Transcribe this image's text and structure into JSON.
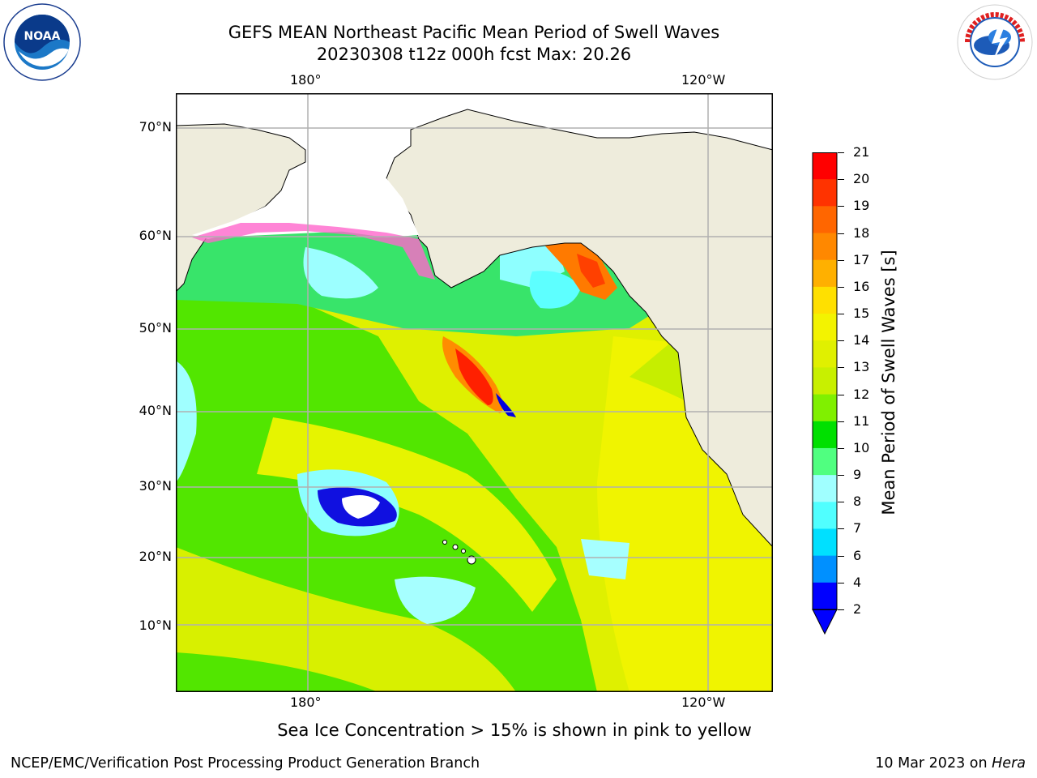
{
  "header": {
    "title_line1": "GEFS MEAN Northeast Pacific Mean Period of Swell Waves",
    "title_line2": "20230308 t12z 000h fcst   Max: 20.26"
  },
  "map": {
    "top_lon_labels": [
      "180°",
      "120°W"
    ],
    "bottom_lon_labels": [
      "180°",
      "120°W"
    ],
    "lat_labels": [
      "70°N",
      "60°N",
      "50°N",
      "40°N",
      "30°N",
      "20°N",
      "10°N"
    ],
    "colors": {
      "land": "#eeecdc",
      "grid": "#b0b0b0",
      "coast": "#000000"
    }
  },
  "colorbar": {
    "title": "Mean Period of Swell Waves [s]",
    "ticks": [
      "21",
      "20",
      "19",
      "18",
      "17",
      "16",
      "15",
      "14",
      "13",
      "12",
      "11",
      "10",
      "9",
      "8",
      "7",
      "6",
      "4",
      "2"
    ],
    "colors": [
      "#ff0000",
      "#ff3300",
      "#ff6600",
      "#ff8800",
      "#ffb000",
      "#ffe000",
      "#f3f300",
      "#e0f000",
      "#c8f000",
      "#80f000",
      "#00e000",
      "#50ff80",
      "#a0ffff",
      "#50ffff",
      "#00e0ff",
      "#0090ff",
      "#0000ff"
    ]
  },
  "footer": {
    "sea_ice_note": "Sea Ice Concentration > 15% is shown in pink to yellow",
    "left": "NCEP/EMC/Verification Post Processing Product Generation Branch",
    "right_date": "10 Mar 2023 on ",
    "right_machine": "Hera"
  },
  "logos": {
    "left_text": "NOAA",
    "right_text": "NATIONAL WEATHER SERVICE"
  }
}
